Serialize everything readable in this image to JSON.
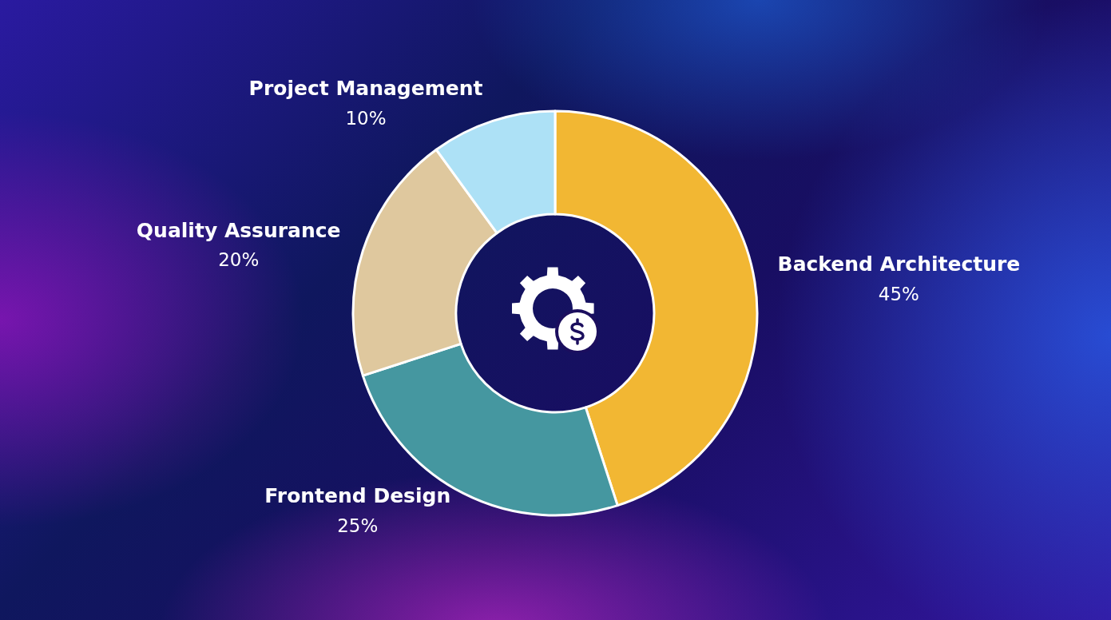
{
  "chart_data": {
    "type": "donut",
    "categories": [
      "Backend Architecture",
      "Frontend Design",
      "Quality Assurance",
      "Project Management"
    ],
    "values": [
      45,
      25,
      20,
      10
    ],
    "colors": [
      "#f2b733",
      "#4597a0",
      "#dfc89e",
      "#ade1f6"
    ],
    "value_labels": [
      "45%",
      "25%",
      "20%",
      "10%"
    ]
  }
}
